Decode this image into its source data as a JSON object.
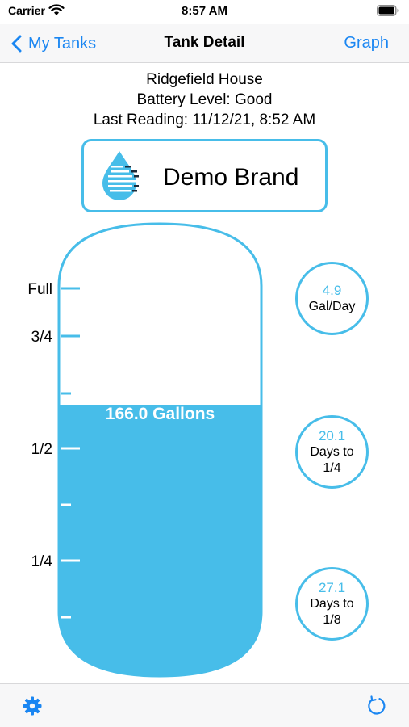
{
  "status": {
    "carrier": "Carrier",
    "time": "8:57 AM"
  },
  "nav": {
    "back_label": "My Tanks",
    "title": "Tank Detail",
    "graph_label": "Graph"
  },
  "info": {
    "location": "Ridgefield House",
    "battery": "Battery Level: Good",
    "last_reading": "Last Reading: 11/12/21, 8:52 AM"
  },
  "brand": {
    "name": "Demo Brand",
    "logo_icon": "water-drop-icon"
  },
  "tank": {
    "gallons_label": "166.0 Gallons",
    "fill_fraction": 0.6,
    "level_labels": [
      "Full",
      "3/4",
      "1/2",
      "1/4"
    ],
    "color": "#47bde9"
  },
  "stats": [
    {
      "value": "4.9",
      "label_lines": [
        "Gal/Day"
      ]
    },
    {
      "value": "20.1",
      "label_lines": [
        "Days to",
        "1/4"
      ]
    },
    {
      "value": "27.1",
      "label_lines": [
        "Days to",
        "1/8"
      ]
    }
  ],
  "toolbar": {
    "settings_icon": "gear-icon",
    "refresh_icon": "refresh-icon"
  },
  "colors": {
    "accent": "#1a86f2",
    "tank": "#47bde9"
  }
}
